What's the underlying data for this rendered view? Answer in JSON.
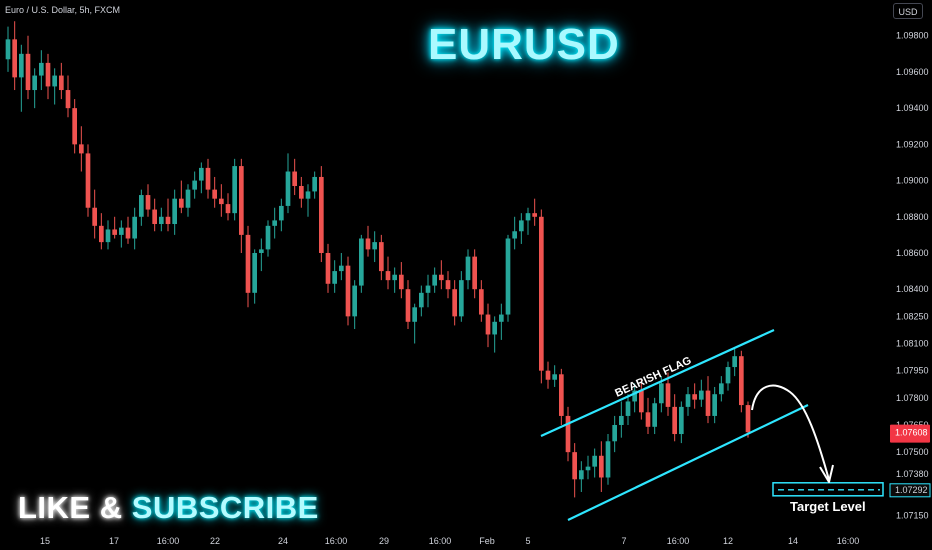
{
  "header": {
    "symbol_label": "Euro / U.S. Dollar, 5h, FXCM",
    "currency": "USD"
  },
  "title": "EURUSD",
  "promo": {
    "like": "LIKE",
    "amp": "&",
    "subscribe": "SUBSCRIBE"
  },
  "annotations": {
    "pattern_label": "BEARISH FLAG",
    "target_label": "Target Level"
  },
  "colors": {
    "up": "#26a69a",
    "down": "#ef5350",
    "channel": "#2ee6ff",
    "background": "#000000"
  },
  "chart_data": {
    "type": "candlestick",
    "symbol": "EURUSD",
    "timeframe": "5h",
    "x_ticks": [
      "15",
      "17",
      "16:00",
      "22",
      "24",
      "16:00",
      "29",
      "16:00",
      "Feb",
      "5",
      "7",
      "16:00",
      "12",
      "14",
      "16:00"
    ],
    "y_ticks": [
      "1.09800",
      "1.09600",
      "1.09400",
      "1.09200",
      "1.09000",
      "1.08800",
      "1.08600",
      "1.08400",
      "1.08250",
      "1.08100",
      "1.07950",
      "1.07800",
      "1.07650",
      "1.07500",
      "1.07380",
      "1.07290",
      "1.07150"
    ],
    "current_price": "1.07608",
    "target_price": "1.07292",
    "ylim": [
      1.0707,
      1.0992
    ],
    "candles_ohlc": [
      [
        1.0967,
        1.0985,
        1.096,
        1.0978
      ],
      [
        1.0978,
        1.0988,
        1.095,
        1.0957
      ],
      [
        1.0957,
        1.0975,
        1.0938,
        1.097
      ],
      [
        1.097,
        1.098,
        1.0945,
        1.095
      ],
      [
        1.095,
        1.0962,
        1.094,
        1.0958
      ],
      [
        1.0958,
        1.0972,
        1.095,
        1.0965
      ],
      [
        1.0965,
        1.097,
        1.0945,
        1.0952
      ],
      [
        1.0952,
        1.0962,
        1.0942,
        1.0958
      ],
      [
        1.0958,
        1.0965,
        1.0945,
        1.095
      ],
      [
        1.095,
        1.0958,
        1.0935,
        1.094
      ],
      [
        1.094,
        1.0945,
        1.0915,
        1.092
      ],
      [
        1.092,
        1.093,
        1.0905,
        1.0915
      ],
      [
        1.0915,
        1.092,
        1.088,
        1.0885
      ],
      [
        1.0885,
        1.0895,
        1.0868,
        1.0875
      ],
      [
        1.0875,
        1.0882,
        1.0862,
        1.0866
      ],
      [
        1.0866,
        1.0878,
        1.0862,
        1.0873
      ],
      [
        1.0873,
        1.088,
        1.0868,
        1.087
      ],
      [
        1.087,
        1.0878,
        1.0863,
        1.0874
      ],
      [
        1.0874,
        1.088,
        1.0865,
        1.0868
      ],
      [
        1.0868,
        1.0885,
        1.0862,
        1.088
      ],
      [
        1.088,
        1.0895,
        1.0875,
        1.0892
      ],
      [
        1.0892,
        1.0898,
        1.088,
        1.0884
      ],
      [
        1.0884,
        1.089,
        1.0872,
        1.0876
      ],
      [
        1.0876,
        1.0885,
        1.0872,
        1.088
      ],
      [
        1.088,
        1.089,
        1.0872,
        1.0876
      ],
      [
        1.0876,
        1.0895,
        1.087,
        1.089
      ],
      [
        1.089,
        1.09,
        1.0882,
        1.0885
      ],
      [
        1.0885,
        1.0898,
        1.088,
        1.0895
      ],
      [
        1.0895,
        1.0905,
        1.089,
        1.09
      ],
      [
        1.09,
        1.091,
        1.0893,
        1.0907
      ],
      [
        1.0907,
        1.0912,
        1.089,
        1.0895
      ],
      [
        1.0895,
        1.0902,
        1.0885,
        1.089
      ],
      [
        1.089,
        1.0898,
        1.088,
        1.0887
      ],
      [
        1.0887,
        1.0893,
        1.0878,
        1.0882
      ],
      [
        1.0882,
        1.0912,
        1.0878,
        1.0908
      ],
      [
        1.0908,
        1.0912,
        1.086,
        1.087
      ],
      [
        1.087,
        1.0875,
        1.083,
        1.0838
      ],
      [
        1.0838,
        1.0862,
        1.0832,
        1.086
      ],
      [
        1.086,
        1.0868,
        1.085,
        1.0862
      ],
      [
        1.0862,
        1.0878,
        1.0858,
        1.0875
      ],
      [
        1.0875,
        1.0885,
        1.0868,
        1.0878
      ],
      [
        1.0878,
        1.089,
        1.0872,
        1.0886
      ],
      [
        1.0886,
        1.0915,
        1.0882,
        1.0905
      ],
      [
        1.0905,
        1.0912,
        1.0892,
        1.0897
      ],
      [
        1.0897,
        1.0902,
        1.0885,
        1.089
      ],
      [
        1.089,
        1.0898,
        1.088,
        1.0894
      ],
      [
        1.0894,
        1.0905,
        1.089,
        1.0902
      ],
      [
        1.0902,
        1.0908,
        1.0855,
        1.086
      ],
      [
        1.086,
        1.0865,
        1.0838,
        1.0843
      ],
      [
        1.0843,
        1.0856,
        1.0838,
        1.085
      ],
      [
        1.085,
        1.086,
        1.0845,
        1.0853
      ],
      [
        1.0853,
        1.0858,
        1.082,
        1.0825
      ],
      [
        1.0825,
        1.0845,
        1.0818,
        1.0842
      ],
      [
        1.0842,
        1.087,
        1.0838,
        1.0868
      ],
      [
        1.0868,
        1.0875,
        1.0858,
        1.0862
      ],
      [
        1.0862,
        1.0872,
        1.0855,
        1.0866
      ],
      [
        1.0866,
        1.087,
        1.0845,
        1.085
      ],
      [
        1.085,
        1.0858,
        1.084,
        1.0845
      ],
      [
        1.0845,
        1.0852,
        1.0838,
        1.0848
      ],
      [
        1.0848,
        1.0855,
        1.0835,
        1.084
      ],
      [
        1.084,
        1.0845,
        1.0818,
        1.0822
      ],
      [
        1.0822,
        1.0832,
        1.081,
        1.083
      ],
      [
        1.083,
        1.0842,
        1.0825,
        1.0838
      ],
      [
        1.0838,
        1.0848,
        1.083,
        1.0842
      ],
      [
        1.0842,
        1.0852,
        1.0838,
        1.0848
      ],
      [
        1.0848,
        1.0856,
        1.084,
        1.0845
      ],
      [
        1.0845,
        1.085,
        1.0835,
        1.084
      ],
      [
        1.084,
        1.0845,
        1.082,
        1.0825
      ],
      [
        1.0825,
        1.085,
        1.0822,
        1.0845
      ],
      [
        1.0845,
        1.0862,
        1.084,
        1.0858
      ],
      [
        1.0858,
        1.0862,
        1.0835,
        1.084
      ],
      [
        1.084,
        1.0845,
        1.0822,
        1.0826
      ],
      [
        1.0826,
        1.0832,
        1.0808,
        1.0815
      ],
      [
        1.0815,
        1.0825,
        1.0805,
        1.0822
      ],
      [
        1.0822,
        1.0832,
        1.0812,
        1.0826
      ],
      [
        1.0826,
        1.087,
        1.0822,
        1.0868
      ],
      [
        1.0868,
        1.088,
        1.0862,
        1.0872
      ],
      [
        1.0872,
        1.0882,
        1.0865,
        1.0878
      ],
      [
        1.0878,
        1.0885,
        1.087,
        1.0882
      ],
      [
        1.0882,
        1.089,
        1.0875,
        1.088
      ],
      [
        1.088,
        1.0884,
        1.0788,
        1.0795
      ],
      [
        1.0795,
        1.08,
        1.0785,
        1.079
      ],
      [
        1.079,
        1.0798,
        1.0786,
        1.0793
      ],
      [
        1.0793,
        1.0796,
        1.0765,
        1.077
      ],
      [
        1.077,
        1.0775,
        1.0745,
        1.075
      ],
      [
        1.075,
        1.0755,
        1.0725,
        1.0735
      ],
      [
        1.0735,
        1.0745,
        1.0728,
        1.074
      ],
      [
        1.074,
        1.0748,
        1.0735,
        1.0742
      ],
      [
        1.0742,
        1.0752,
        1.0736,
        1.0748
      ],
      [
        1.0748,
        1.0756,
        1.0728,
        1.0736
      ],
      [
        1.0736,
        1.076,
        1.0732,
        1.0756
      ],
      [
        1.0756,
        1.077,
        1.075,
        1.0765
      ],
      [
        1.0765,
        1.0778,
        1.0758,
        1.077
      ],
      [
        1.077,
        1.0782,
        1.0765,
        1.0778
      ],
      [
        1.0778,
        1.0788,
        1.0772,
        1.0784
      ],
      [
        1.0784,
        1.079,
        1.0768,
        1.0772
      ],
      [
        1.0772,
        1.078,
        1.076,
        1.0764
      ],
      [
        1.0764,
        1.078,
        1.076,
        1.0777
      ],
      [
        1.0777,
        1.0792,
        1.0772,
        1.0788
      ],
      [
        1.0788,
        1.0794,
        1.077,
        1.0775
      ],
      [
        1.0775,
        1.0782,
        1.0756,
        1.076
      ],
      [
        1.076,
        1.0778,
        1.0755,
        1.0775
      ],
      [
        1.0775,
        1.0786,
        1.077,
        1.0782
      ],
      [
        1.0782,
        1.0788,
        1.0774,
        1.0779
      ],
      [
        1.0779,
        1.079,
        1.0775,
        1.0784
      ],
      [
        1.0784,
        1.0792,
        1.0766,
        1.077
      ],
      [
        1.077,
        1.0786,
        1.0766,
        1.0782
      ],
      [
        1.0782,
        1.0792,
        1.0778,
        1.0788
      ],
      [
        1.0788,
        1.08,
        1.0784,
        1.0797
      ],
      [
        1.0797,
        1.0808,
        1.0792,
        1.0803
      ],
      [
        1.0803,
        1.0806,
        1.0772,
        1.0776
      ],
      [
        1.0776,
        1.0778,
        1.0758,
        1.0761
      ]
    ],
    "channel": {
      "upper_line": [
        [
          "Feb 5",
          1.0762
        ],
        [
          "Feb 12",
          1.0813
        ]
      ],
      "lower_line": [
        [
          "Feb 5",
          1.0716
        ],
        [
          "Feb 12",
          1.0778
        ]
      ]
    },
    "projection": "arrow from last candle to target level"
  }
}
